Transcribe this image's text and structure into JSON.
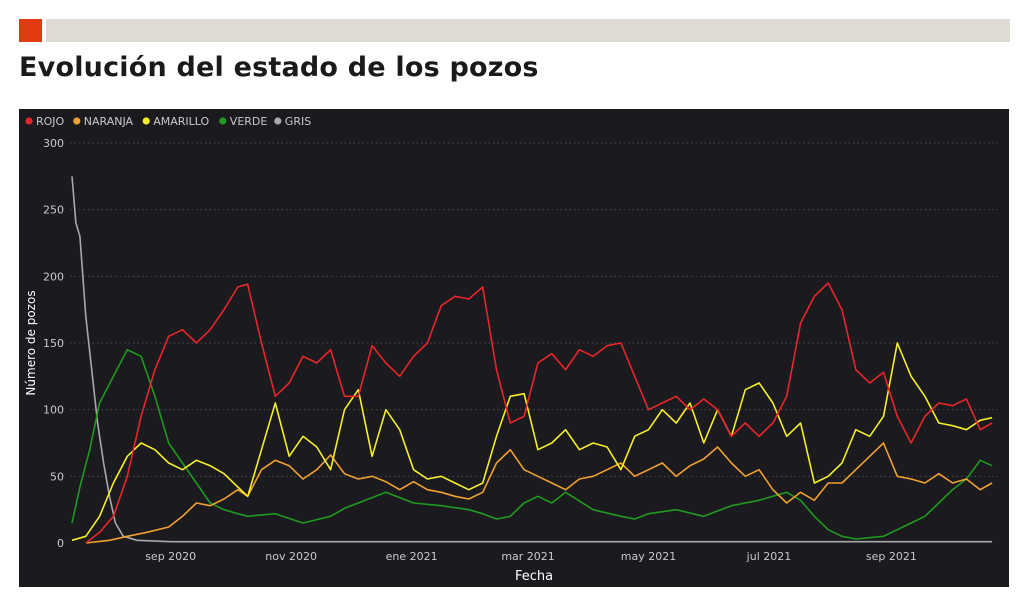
{
  "header": {
    "title": "Evolución del estado de los pozos"
  },
  "colors": {
    "accent": "#e23a12",
    "topbar": "#e0dbd2",
    "background": "#1b1a1f",
    "text": "#c9c9c9",
    "grid": "#4a4a4f"
  },
  "chart_data": {
    "type": "line",
    "title": "",
    "xlabel": "Fecha",
    "ylabel": "Número de pozos",
    "ylim": [
      0,
      300
    ],
    "yticks": [
      0,
      50,
      100,
      150,
      200,
      250,
      300
    ],
    "xlim": [
      "2020-07-12",
      "2021-10-25"
    ],
    "xticks": [
      {
        "date": "2020-09-01",
        "label": "sep 2020"
      },
      {
        "date": "2020-11-01",
        "label": "nov 2020"
      },
      {
        "date": "2021-01-01",
        "label": "ene 2021"
      },
      {
        "date": "2021-03-01",
        "label": "mar 2021"
      },
      {
        "date": "2021-05-01",
        "label": "may 2021"
      },
      {
        "date": "2021-07-01",
        "label": "jul 2021"
      },
      {
        "date": "2021-09-01",
        "label": "sep 2021"
      }
    ],
    "grid": true,
    "legend_position": "top-left",
    "series": [
      {
        "name": "ROJO",
        "color": "#e8262a",
        "points": [
          [
            "2020-07-20",
            0
          ],
          [
            "2020-07-27",
            8
          ],
          [
            "2020-08-03",
            20
          ],
          [
            "2020-08-10",
            50
          ],
          [
            "2020-08-17",
            95
          ],
          [
            "2020-08-24",
            130
          ],
          [
            "2020-08-31",
            155
          ],
          [
            "2020-09-07",
            160
          ],
          [
            "2020-09-14",
            150
          ],
          [
            "2020-09-21",
            160
          ],
          [
            "2020-09-28",
            175
          ],
          [
            "2020-10-05",
            192
          ],
          [
            "2020-10-10",
            194
          ],
          [
            "2020-10-17",
            150
          ],
          [
            "2020-10-24",
            110
          ],
          [
            "2020-10-31",
            120
          ],
          [
            "2020-11-07",
            140
          ],
          [
            "2020-11-14",
            135
          ],
          [
            "2020-11-21",
            145
          ],
          [
            "2020-11-28",
            110
          ],
          [
            "2020-12-05",
            110
          ],
          [
            "2020-12-12",
            148
          ],
          [
            "2020-12-19",
            135
          ],
          [
            "2020-12-26",
            125
          ],
          [
            "2021-01-02",
            140
          ],
          [
            "2021-01-09",
            150
          ],
          [
            "2021-01-16",
            178
          ],
          [
            "2021-01-23",
            185
          ],
          [
            "2021-01-30",
            183
          ],
          [
            "2021-02-06",
            192
          ],
          [
            "2021-02-13",
            130
          ],
          [
            "2021-02-20",
            90
          ],
          [
            "2021-02-27",
            95
          ],
          [
            "2021-03-06",
            135
          ],
          [
            "2021-03-13",
            142
          ],
          [
            "2021-03-20",
            130
          ],
          [
            "2021-03-27",
            145
          ],
          [
            "2021-04-03",
            140
          ],
          [
            "2021-04-10",
            148
          ],
          [
            "2021-04-17",
            150
          ],
          [
            "2021-04-24",
            125
          ],
          [
            "2021-05-01",
            100
          ],
          [
            "2021-05-08",
            105
          ],
          [
            "2021-05-15",
            110
          ],
          [
            "2021-05-22",
            100
          ],
          [
            "2021-05-29",
            108
          ],
          [
            "2021-06-05",
            100
          ],
          [
            "2021-06-12",
            80
          ],
          [
            "2021-06-19",
            90
          ],
          [
            "2021-06-26",
            80
          ],
          [
            "2021-07-03",
            90
          ],
          [
            "2021-07-10",
            110
          ],
          [
            "2021-07-17",
            165
          ],
          [
            "2021-07-24",
            185
          ],
          [
            "2021-07-31",
            195
          ],
          [
            "2021-08-07",
            175
          ],
          [
            "2021-08-14",
            130
          ],
          [
            "2021-08-21",
            120
          ],
          [
            "2021-08-28",
            128
          ],
          [
            "2021-09-04",
            95
          ],
          [
            "2021-09-11",
            75
          ],
          [
            "2021-09-18",
            95
          ],
          [
            "2021-09-25",
            105
          ],
          [
            "2021-10-02",
            103
          ],
          [
            "2021-10-09",
            108
          ],
          [
            "2021-10-16",
            85
          ],
          [
            "2021-10-22",
            90
          ]
        ]
      },
      {
        "name": "NARANJA",
        "color": "#f0a030",
        "points": [
          [
            "2020-07-20",
            0
          ],
          [
            "2020-08-01",
            2
          ],
          [
            "2020-08-10",
            5
          ],
          [
            "2020-08-20",
            8
          ],
          [
            "2020-08-31",
            12
          ],
          [
            "2020-09-07",
            20
          ],
          [
            "2020-09-14",
            30
          ],
          [
            "2020-09-21",
            28
          ],
          [
            "2020-09-28",
            33
          ],
          [
            "2020-10-05",
            40
          ],
          [
            "2020-10-10",
            35
          ],
          [
            "2020-10-17",
            55
          ],
          [
            "2020-10-24",
            62
          ],
          [
            "2020-10-31",
            58
          ],
          [
            "2020-11-07",
            48
          ],
          [
            "2020-11-14",
            55
          ],
          [
            "2020-11-21",
            66
          ],
          [
            "2020-11-28",
            52
          ],
          [
            "2020-12-05",
            48
          ],
          [
            "2020-12-12",
            50
          ],
          [
            "2020-12-19",
            46
          ],
          [
            "2020-12-26",
            40
          ],
          [
            "2021-01-02",
            46
          ],
          [
            "2021-01-09",
            40
          ],
          [
            "2021-01-16",
            38
          ],
          [
            "2021-01-23",
            35
          ],
          [
            "2021-01-30",
            33
          ],
          [
            "2021-02-06",
            38
          ],
          [
            "2021-02-13",
            60
          ],
          [
            "2021-02-20",
            70
          ],
          [
            "2021-02-27",
            55
          ],
          [
            "2021-03-06",
            50
          ],
          [
            "2021-03-13",
            45
          ],
          [
            "2021-03-20",
            40
          ],
          [
            "2021-03-27",
            48
          ],
          [
            "2021-04-03",
            50
          ],
          [
            "2021-04-10",
            55
          ],
          [
            "2021-04-17",
            60
          ],
          [
            "2021-04-24",
            50
          ],
          [
            "2021-05-01",
            55
          ],
          [
            "2021-05-08",
            60
          ],
          [
            "2021-05-15",
            50
          ],
          [
            "2021-05-22",
            58
          ],
          [
            "2021-05-29",
            63
          ],
          [
            "2021-06-05",
            72
          ],
          [
            "2021-06-12",
            60
          ],
          [
            "2021-06-19",
            50
          ],
          [
            "2021-06-26",
            55
          ],
          [
            "2021-07-03",
            40
          ],
          [
            "2021-07-10",
            30
          ],
          [
            "2021-07-17",
            38
          ],
          [
            "2021-07-24",
            32
          ],
          [
            "2021-07-31",
            45
          ],
          [
            "2021-08-07",
            45
          ],
          [
            "2021-08-14",
            55
          ],
          [
            "2021-08-21",
            65
          ],
          [
            "2021-08-28",
            75
          ],
          [
            "2021-09-04",
            50
          ],
          [
            "2021-09-11",
            48
          ],
          [
            "2021-09-18",
            45
          ],
          [
            "2021-09-25",
            52
          ],
          [
            "2021-10-02",
            45
          ],
          [
            "2021-10-09",
            48
          ],
          [
            "2021-10-16",
            40
          ],
          [
            "2021-10-22",
            45
          ]
        ]
      },
      {
        "name": "AMARILLO",
        "color": "#f5ee2a",
        "points": [
          [
            "2020-07-13",
            2
          ],
          [
            "2020-07-20",
            5
          ],
          [
            "2020-07-27",
            20
          ],
          [
            "2020-08-03",
            45
          ],
          [
            "2020-08-10",
            65
          ],
          [
            "2020-08-17",
            75
          ],
          [
            "2020-08-24",
            70
          ],
          [
            "2020-08-31",
            60
          ],
          [
            "2020-09-07",
            55
          ],
          [
            "2020-09-14",
            62
          ],
          [
            "2020-09-21",
            58
          ],
          [
            "2020-09-28",
            52
          ],
          [
            "2020-10-05",
            42
          ],
          [
            "2020-10-10",
            35
          ],
          [
            "2020-10-17",
            70
          ],
          [
            "2020-10-24",
            105
          ],
          [
            "2020-10-31",
            65
          ],
          [
            "2020-11-07",
            80
          ],
          [
            "2020-11-14",
            72
          ],
          [
            "2020-11-21",
            55
          ],
          [
            "2020-11-28",
            100
          ],
          [
            "2020-12-05",
            115
          ],
          [
            "2020-12-12",
            65
          ],
          [
            "2020-12-19",
            100
          ],
          [
            "2020-12-26",
            85
          ],
          [
            "2021-01-02",
            55
          ],
          [
            "2021-01-09",
            48
          ],
          [
            "2021-01-16",
            50
          ],
          [
            "2021-01-23",
            45
          ],
          [
            "2021-01-30",
            40
          ],
          [
            "2021-02-06",
            45
          ],
          [
            "2021-02-13",
            80
          ],
          [
            "2021-02-20",
            110
          ],
          [
            "2021-02-27",
            112
          ],
          [
            "2021-03-06",
            70
          ],
          [
            "2021-03-13",
            75
          ],
          [
            "2021-03-20",
            85
          ],
          [
            "2021-03-27",
            70
          ],
          [
            "2021-04-03",
            75
          ],
          [
            "2021-04-10",
            72
          ],
          [
            "2021-04-17",
            55
          ],
          [
            "2021-04-24",
            80
          ],
          [
            "2021-05-01",
            85
          ],
          [
            "2021-05-08",
            100
          ],
          [
            "2021-05-15",
            90
          ],
          [
            "2021-05-22",
            105
          ],
          [
            "2021-05-29",
            75
          ],
          [
            "2021-06-05",
            100
          ],
          [
            "2021-06-12",
            80
          ],
          [
            "2021-06-19",
            115
          ],
          [
            "2021-06-26",
            120
          ],
          [
            "2021-07-03",
            105
          ],
          [
            "2021-07-10",
            80
          ],
          [
            "2021-07-17",
            90
          ],
          [
            "2021-07-24",
            45
          ],
          [
            "2021-07-31",
            50
          ],
          [
            "2021-08-07",
            60
          ],
          [
            "2021-08-14",
            85
          ],
          [
            "2021-08-21",
            80
          ],
          [
            "2021-08-28",
            95
          ],
          [
            "2021-09-04",
            150
          ],
          [
            "2021-09-11",
            125
          ],
          [
            "2021-09-18",
            110
          ],
          [
            "2021-09-25",
            90
          ],
          [
            "2021-10-02",
            88
          ],
          [
            "2021-10-09",
            85
          ],
          [
            "2021-10-16",
            92
          ],
          [
            "2021-10-22",
            94
          ]
        ]
      },
      {
        "name": "VERDE",
        "color": "#1f9a1f",
        "points": [
          [
            "2020-07-13",
            15
          ],
          [
            "2020-07-17",
            42
          ],
          [
            "2020-07-22",
            70
          ],
          [
            "2020-07-27",
            105
          ],
          [
            "2020-08-03",
            125
          ],
          [
            "2020-08-10",
            145
          ],
          [
            "2020-08-17",
            140
          ],
          [
            "2020-08-24",
            110
          ],
          [
            "2020-08-31",
            75
          ],
          [
            "2020-09-07",
            60
          ],
          [
            "2020-09-14",
            45
          ],
          [
            "2020-09-21",
            30
          ],
          [
            "2020-09-28",
            25
          ],
          [
            "2020-10-05",
            22
          ],
          [
            "2020-10-10",
            20
          ],
          [
            "2020-10-24",
            22
          ],
          [
            "2020-11-07",
            15
          ],
          [
            "2020-11-21",
            20
          ],
          [
            "2020-11-28",
            26
          ],
          [
            "2020-12-05",
            30
          ],
          [
            "2020-12-19",
            38
          ],
          [
            "2021-01-02",
            30
          ],
          [
            "2021-01-16",
            28
          ],
          [
            "2021-01-30",
            25
          ],
          [
            "2021-02-06",
            22
          ],
          [
            "2021-02-13",
            18
          ],
          [
            "2021-02-20",
            20
          ],
          [
            "2021-02-27",
            30
          ],
          [
            "2021-03-06",
            35
          ],
          [
            "2021-03-13",
            30
          ],
          [
            "2021-03-20",
            38
          ],
          [
            "2021-04-03",
            25
          ],
          [
            "2021-04-17",
            20
          ],
          [
            "2021-04-24",
            18
          ],
          [
            "2021-05-01",
            22
          ],
          [
            "2021-05-15",
            25
          ],
          [
            "2021-05-29",
            20
          ],
          [
            "2021-06-12",
            28
          ],
          [
            "2021-06-26",
            32
          ],
          [
            "2021-07-10",
            38
          ],
          [
            "2021-07-17",
            32
          ],
          [
            "2021-07-24",
            20
          ],
          [
            "2021-07-31",
            10
          ],
          [
            "2021-08-07",
            5
          ],
          [
            "2021-08-14",
            3
          ],
          [
            "2021-08-28",
            5
          ],
          [
            "2021-09-04",
            10
          ],
          [
            "2021-09-11",
            15
          ],
          [
            "2021-09-18",
            20
          ],
          [
            "2021-09-25",
            30
          ],
          [
            "2021-10-02",
            40
          ],
          [
            "2021-10-09",
            48
          ],
          [
            "2021-10-16",
            62
          ],
          [
            "2021-10-22",
            58
          ]
        ]
      },
      {
        "name": "GRIS",
        "color": "#a8a8a8",
        "points": [
          [
            "2020-07-13",
            275
          ],
          [
            "2020-07-15",
            240
          ],
          [
            "2020-07-17",
            230
          ],
          [
            "2020-07-20",
            170
          ],
          [
            "2020-07-23",
            130
          ],
          [
            "2020-07-26",
            90
          ],
          [
            "2020-07-29",
            60
          ],
          [
            "2020-08-01",
            35
          ],
          [
            "2020-08-04",
            15
          ],
          [
            "2020-08-08",
            5
          ],
          [
            "2020-08-15",
            2
          ],
          [
            "2020-09-01",
            1
          ],
          [
            "2020-10-15",
            1
          ],
          [
            "2021-01-01",
            1
          ],
          [
            "2021-06-01",
            1
          ],
          [
            "2021-10-22",
            1
          ]
        ]
      }
    ]
  }
}
